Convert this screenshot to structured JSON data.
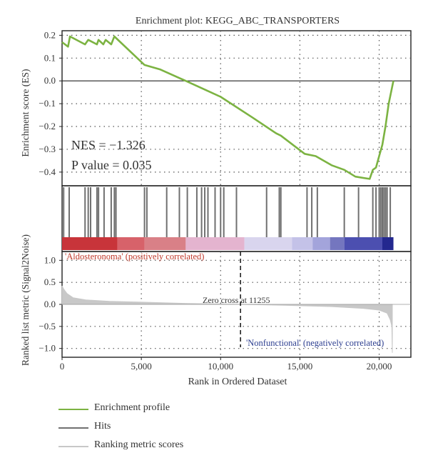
{
  "title": "Enrichment plot: KEGG_ABC_TRANSPORTERS",
  "stats": {
    "nes": "NES = −1.326",
    "pvalue": "P value = 0.035"
  },
  "labels": {
    "pos": "'Aldosteronoma' (positively correlated)",
    "neg": "'Nonfunctional' (negatively correlated)",
    "zero_cross": "Zero cross at 11255"
  },
  "legend": [
    {
      "label": "Enrichment profile",
      "color": "#7cb342"
    },
    {
      "label": "Hits",
      "color": "#707070"
    },
    {
      "label": "Ranking metric scores",
      "color": "#c8c8c8"
    }
  ],
  "colors": {
    "es_line": "#7cb342",
    "hit": "#707070",
    "metric": "#c8c8c8",
    "grid": "#555555"
  },
  "chart_data": {
    "type": "line",
    "title": "Enrichment plot: KEGG_ABC_TRANSPORTERS",
    "xlabel": "Rank in Ordered Dataset",
    "xlim": [
      0,
      22000
    ],
    "x_ticks": [
      0,
      5000,
      10000,
      15000,
      20000
    ],
    "x_tick_labels": [
      "0",
      "5,000",
      "10,000",
      "15,000",
      "20,000"
    ],
    "es": {
      "ylabel": "Enrichment score (ES)",
      "ylim": [
        -0.46,
        0.22
      ],
      "y_ticks": [
        0.2,
        0.1,
        0.0,
        -0.1,
        -0.2,
        -0.3,
        -0.4
      ],
      "y_tick_labels": [
        "0.2",
        "0.1",
        "0.0",
        "−0.1",
        "−0.2",
        "−0.3",
        "−0.4"
      ],
      "points": [
        [
          0,
          0.17
        ],
        [
          380,
          0.15
        ],
        [
          500,
          0.195
        ],
        [
          1450,
          0.16
        ],
        [
          1650,
          0.18
        ],
        [
          2200,
          0.16
        ],
        [
          2300,
          0.18
        ],
        [
          2600,
          0.16
        ],
        [
          2750,
          0.18
        ],
        [
          3100,
          0.16
        ],
        [
          3300,
          0.195
        ],
        [
          5200,
          0.07
        ],
        [
          6200,
          0.05
        ],
        [
          7800,
          0.0
        ],
        [
          10000,
          -0.07
        ],
        [
          12000,
          -0.16
        ],
        [
          13500,
          -0.23
        ],
        [
          13800,
          -0.24
        ],
        [
          15300,
          -0.32
        ],
        [
          16000,
          -0.33
        ],
        [
          17000,
          -0.37
        ],
        [
          17800,
          -0.39
        ],
        [
          18500,
          -0.42
        ],
        [
          19400,
          -0.43
        ],
        [
          19600,
          -0.39
        ],
        [
          19800,
          -0.38
        ],
        [
          20000,
          -0.33
        ],
        [
          20200,
          -0.28
        ],
        [
          20400,
          -0.2
        ],
        [
          20600,
          -0.1
        ],
        [
          20900,
          0.0
        ]
      ]
    },
    "hits": [
      100,
      450,
      1450,
      1650,
      1800,
      2200,
      2300,
      2650,
      3100,
      3300,
      3400,
      5200,
      5350,
      6600,
      7400,
      7900,
      8500,
      8800,
      9000,
      9200,
      9650,
      10000,
      10200,
      11000,
      12900,
      13700,
      13800,
      15450,
      15750,
      16100,
      17800,
      18700,
      19600,
      19800,
      20000,
      20100,
      20200,
      20300,
      20400,
      20500,
      20700
    ],
    "metric": {
      "ylabel": "Ranked list metric (Signal2Noise)",
      "ylim": [
        -1.2,
        1.2
      ],
      "y_ticks": [
        1.0,
        0.5,
        0.0,
        -0.5,
        -1.0
      ],
      "y_tick_labels": [
        "1.0",
        "0.5",
        "0.0",
        "−0.5",
        "−1.0"
      ],
      "points": [
        [
          0,
          0.42
        ],
        [
          100,
          0.35
        ],
        [
          300,
          0.25
        ],
        [
          700,
          0.15
        ],
        [
          1500,
          0.1
        ],
        [
          3000,
          0.07
        ],
        [
          5000,
          0.05
        ],
        [
          8000,
          0.02
        ],
        [
          11255,
          0.0
        ],
        [
          14000,
          -0.02
        ],
        [
          17000,
          -0.05
        ],
        [
          19000,
          -0.09
        ],
        [
          20000,
          -0.13
        ],
        [
          20500,
          -0.2
        ],
        [
          20700,
          -0.35
        ],
        [
          20800,
          -0.5
        ],
        [
          20830,
          -1.1
        ]
      ],
      "zero_cross": 11255
    }
  }
}
